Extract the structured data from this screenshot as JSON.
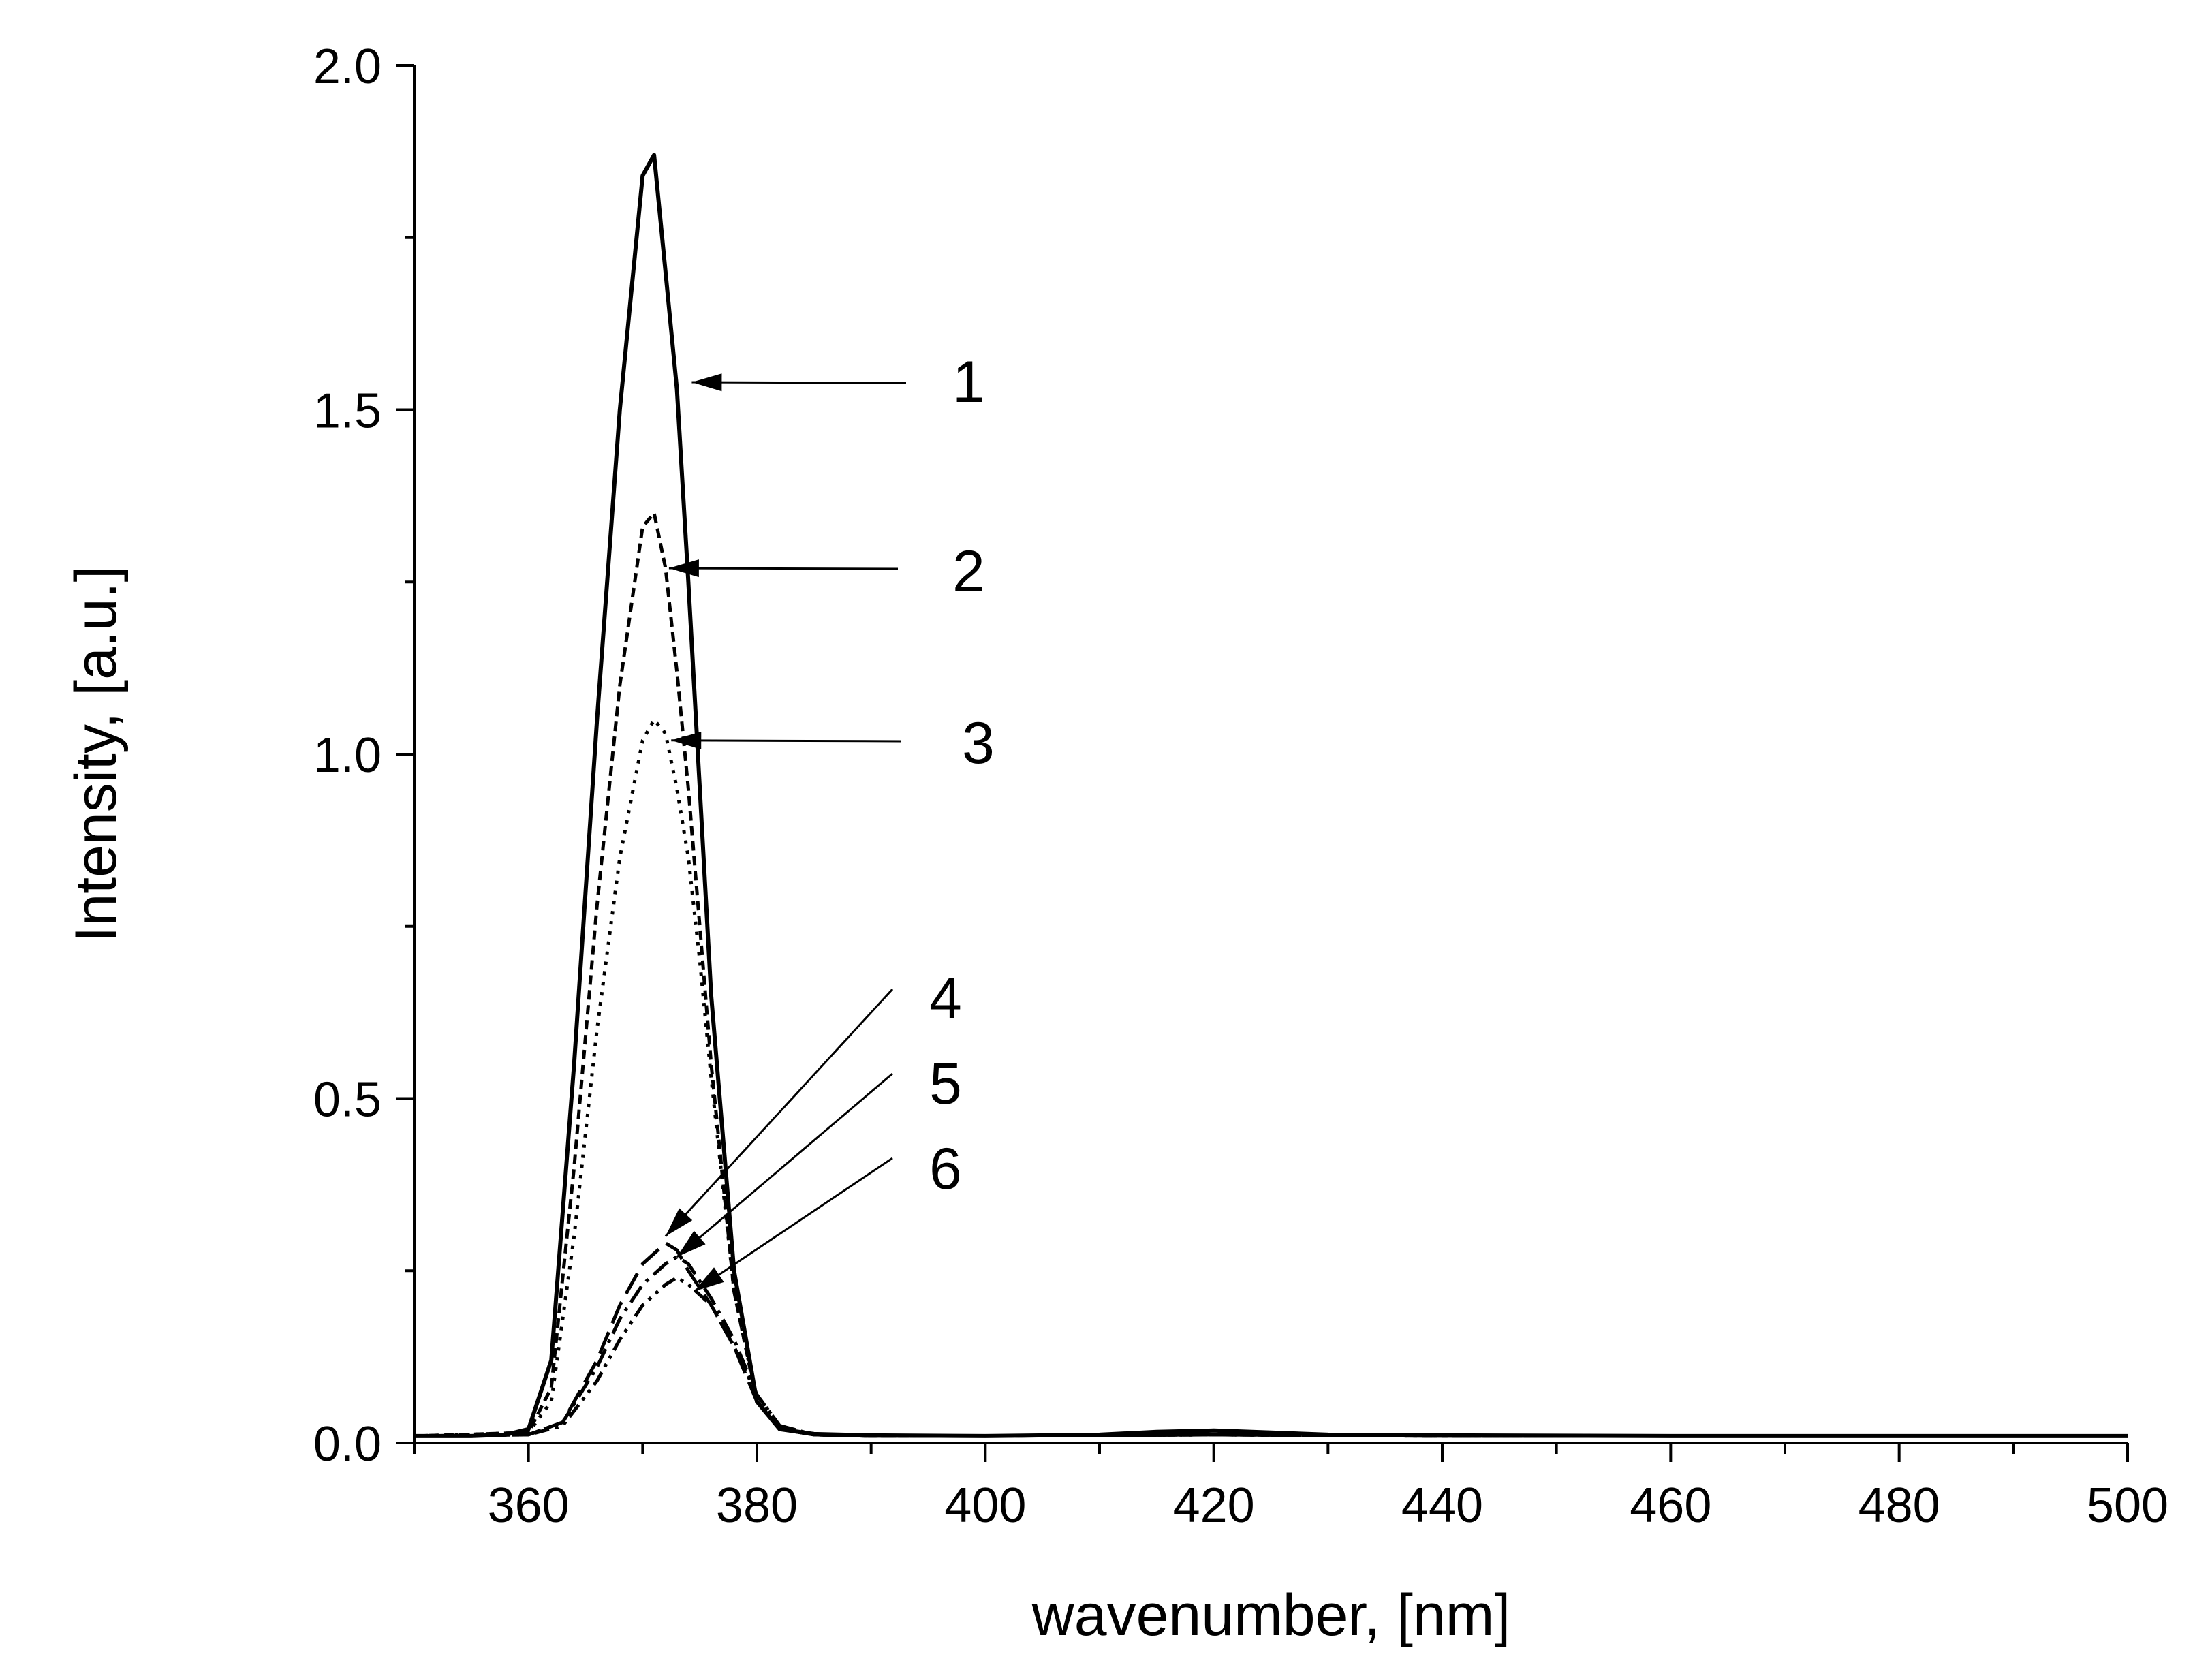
{
  "chart_data": {
    "type": "line",
    "title": "",
    "xlabel": "wavenumber, [nm]",
    "ylabel": "Intensity, [a.u.]",
    "xlim": [
      350,
      500
    ],
    "ylim": [
      0,
      2.0
    ],
    "x_ticks": [
      360,
      380,
      400,
      420,
      440,
      460,
      480,
      500
    ],
    "y_ticks": [
      0.0,
      0.5,
      1.0,
      1.5,
      2.0
    ],
    "x_tick_labels": [
      "360",
      "380",
      "400",
      "420",
      "440",
      "460",
      "480",
      "500"
    ],
    "y_tick_labels": [
      "0.0",
      "0.5",
      "1.0",
      "1.5",
      "2.0"
    ],
    "grid": false,
    "line_color": "#000000",
    "series": [
      {
        "label": "1",
        "style": "solid",
        "x": [
          350,
          355,
          358,
          360,
          362,
          364,
          366,
          368,
          370,
          371,
          372,
          373,
          374,
          375,
          376,
          378,
          380,
          382,
          385,
          390,
          400,
          410,
          415,
          420,
          425,
          430,
          440,
          460,
          480,
          500
        ],
        "y": [
          0.01,
          0.01,
          0.012,
          0.02,
          0.12,
          0.55,
          1.05,
          1.5,
          1.84,
          1.87,
          1.7,
          1.53,
          1.25,
          0.95,
          0.65,
          0.25,
          0.06,
          0.02,
          0.013,
          0.011,
          0.01,
          0.012,
          0.016,
          0.018,
          0.015,
          0.012,
          0.011,
          0.01,
          0.01,
          0.01
        ]
      },
      {
        "label": "2",
        "style": "dashed",
        "x": [
          350,
          360,
          362,
          364,
          366,
          368,
          370,
          371,
          372,
          373,
          374,
          375,
          376,
          378,
          380,
          382,
          385,
          390,
          400,
          420,
          440,
          460,
          480,
          500
        ],
        "y": [
          0.01,
          0.015,
          0.08,
          0.4,
          0.78,
          1.1,
          1.33,
          1.35,
          1.27,
          1.12,
          0.95,
          0.75,
          0.55,
          0.22,
          0.06,
          0.02,
          0.012,
          0.01,
          0.01,
          0.012,
          0.01,
          0.01,
          0.01,
          0.01
        ]
      },
      {
        "label": "3",
        "style": "dotted",
        "x": [
          350,
          360,
          362,
          364,
          366,
          368,
          370,
          371,
          372,
          373,
          374,
          375,
          376,
          378,
          380,
          382,
          385,
          390,
          400,
          420,
          440,
          460,
          480,
          500
        ],
        "y": [
          0.01,
          0.015,
          0.06,
          0.3,
          0.6,
          0.85,
          1.02,
          1.05,
          1.03,
          0.95,
          0.85,
          0.7,
          0.53,
          0.22,
          0.06,
          0.02,
          0.012,
          0.01,
          0.01,
          0.012,
          0.01,
          0.01,
          0.01,
          0.01
        ]
      },
      {
        "label": "4",
        "style": "long-dash",
        "x": [
          350,
          360,
          363,
          366,
          368,
          370,
          372,
          373,
          374,
          376,
          378,
          380,
          382,
          385,
          390,
          400,
          420,
          440,
          460,
          480,
          500
        ],
        "y": [
          0.01,
          0.012,
          0.03,
          0.12,
          0.2,
          0.26,
          0.29,
          0.28,
          0.25,
          0.2,
          0.14,
          0.06,
          0.02,
          0.012,
          0.01,
          0.01,
          0.012,
          0.01,
          0.01,
          0.01,
          0.01
        ]
      },
      {
        "label": "5",
        "style": "dash-dot",
        "x": [
          350,
          360,
          363,
          366,
          368,
          370,
          372,
          373,
          374,
          376,
          378,
          380,
          382,
          385,
          390,
          400,
          420,
          440,
          460,
          480,
          500
        ],
        "y": [
          0.01,
          0.012,
          0.03,
          0.11,
          0.18,
          0.23,
          0.26,
          0.27,
          0.26,
          0.21,
          0.15,
          0.07,
          0.025,
          0.012,
          0.01,
          0.01,
          0.012,
          0.01,
          0.01,
          0.01,
          0.01
        ]
      },
      {
        "label": "6",
        "style": "dash-dot-dot",
        "x": [
          350,
          360,
          363,
          366,
          368,
          370,
          372,
          373,
          374,
          376,
          378,
          380,
          382,
          385,
          390,
          400,
          420,
          440,
          460,
          480,
          500
        ],
        "y": [
          0.01,
          0.012,
          0.025,
          0.09,
          0.15,
          0.2,
          0.23,
          0.24,
          0.23,
          0.2,
          0.14,
          0.07,
          0.025,
          0.012,
          0.01,
          0.01,
          0.012,
          0.01,
          0.01,
          0.01,
          0.01
        ]
      }
    ],
    "callouts": [
      {
        "label": "1",
        "target": [
          374.3,
          1.54
        ]
      },
      {
        "label": "2",
        "target": [
          372.3,
          1.27
        ]
      },
      {
        "label": "3",
        "target": [
          372.5,
          1.02
        ]
      },
      {
        "label": "4",
        "target": [
          372.0,
          0.3
        ]
      },
      {
        "label": "5",
        "target": [
          373.0,
          0.27
        ]
      },
      {
        "label": "6",
        "target": [
          374.5,
          0.22
        ]
      }
    ]
  }
}
